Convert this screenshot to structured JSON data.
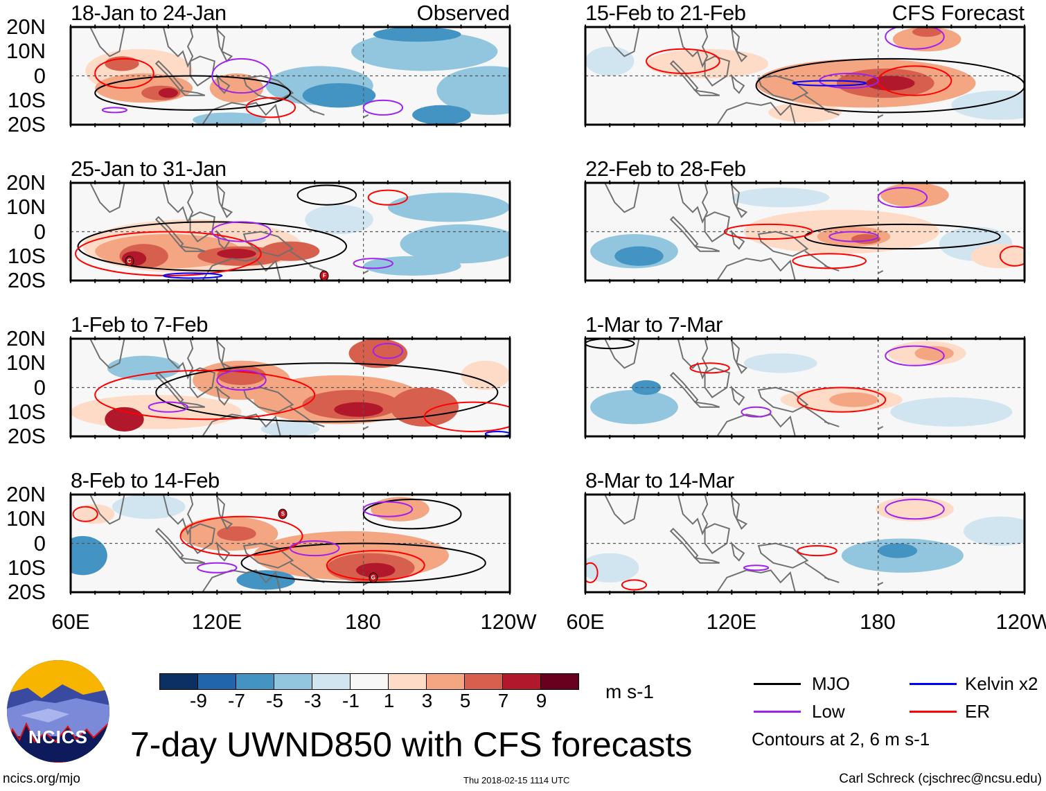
{
  "title": "7-day UWND850 with CFS forecasts",
  "footer": {
    "left": "ncics.org/mjo",
    "center": "Thu 2018-02-15 1114 UTC",
    "right": "Carl Schreck (cjschrec@ncsu.edu)"
  },
  "logo_text": "NCICS",
  "column_labels": {
    "left": "Observed",
    "right": "CFS Forecast"
  },
  "lat_labels": [
    "20N",
    "10N",
    "0",
    "10S",
    "20S"
  ],
  "lon_labels": [
    "60E",
    "120E",
    "180",
    "120W"
  ],
  "colorbar": {
    "units": "m s-1",
    "colors": [
      "#0b3162",
      "#2166ac",
      "#4393c3",
      "#92c5de",
      "#d1e5f0",
      "#f7f7f7",
      "#fddbc7",
      "#f4a582",
      "#d6604d",
      "#b2182b",
      "#67001f"
    ],
    "levels": [
      "-9",
      "-7",
      "-5",
      "-3",
      "-1",
      "1",
      "3",
      "5",
      "7",
      "9"
    ]
  },
  "legend": {
    "items": [
      {
        "label": "MJO",
        "color": "#000000"
      },
      {
        "label": "Kelvin x2",
        "color": "#0000ff"
      },
      {
        "label": "Low",
        "color": "#a020f0"
      },
      {
        "label": "ER",
        "color": "#ff0000"
      }
    ],
    "note": "Contours at 2, 6 m s-1"
  },
  "chart_data": {
    "type": "heatmap",
    "variable": "850-hPa zonal wind anomaly (m s-1)",
    "lon_range": [
      60,
      240
    ],
    "lat_range": [
      -20,
      20
    ],
    "panels": [
      {
        "title": "18-Jan to 24-Jan",
        "label": "Observed",
        "blobs": [
          [
            88,
            2,
            22,
            9,
            3
          ],
          [
            90,
            -5,
            20,
            6,
            5
          ],
          [
            97,
            -7,
            8,
            3,
            7
          ],
          [
            100,
            -7,
            4,
            2,
            9
          ],
          [
            128,
            -5,
            11,
            6,
            5
          ],
          [
            81,
            5,
            7,
            3,
            7
          ],
          [
            150,
            15,
            16,
            5,
            1
          ],
          [
            162,
            -4,
            22,
            8,
            -3
          ],
          [
            170,
            -8,
            15,
            5,
            -5
          ],
          [
            205,
            10,
            30,
            8,
            -3
          ],
          [
            202,
            17,
            18,
            3,
            -5
          ],
          [
            232,
            -6,
            22,
            10,
            -3
          ],
          [
            212,
            -16,
            12,
            4,
            -5
          ],
          [
            125,
            -18,
            15,
            3,
            -3
          ]
        ],
        "contours": [
          [
            "MJO",
            110,
            -7,
            40,
            7
          ],
          [
            "ER",
            82,
            1,
            12,
            6
          ],
          [
            "ER",
            142,
            -13,
            10,
            4
          ],
          [
            "Low",
            130,
            0,
            12,
            7
          ],
          [
            "Low",
            188,
            -13,
            8,
            3
          ],
          [
            "Low",
            78,
            -14,
            5,
            1
          ]
        ],
        "storms": []
      },
      {
        "title": "25-Jan to 31-Jan",
        "label": "",
        "blobs": [
          [
            110,
            -6,
            45,
            11,
            3
          ],
          [
            100,
            -8,
            30,
            7,
            5
          ],
          [
            90,
            -10,
            10,
            5,
            7
          ],
          [
            86,
            -11,
            5,
            3,
            9
          ],
          [
            130,
            -10,
            18,
            4,
            7
          ],
          [
            128,
            -9,
            8,
            2,
            9
          ],
          [
            150,
            -8,
            12,
            4,
            7
          ],
          [
            150,
            12,
            20,
            5,
            1
          ],
          [
            170,
            5,
            14,
            6,
            -1
          ],
          [
            215,
            10,
            25,
            6,
            -3
          ],
          [
            220,
            -5,
            25,
            8,
            -3
          ],
          [
            200,
            -14,
            20,
            4,
            -3
          ]
        ],
        "contours": [
          [
            "MJO",
            118,
            -6,
            55,
            10
          ],
          [
            "MJO",
            165,
            15,
            12,
            4
          ],
          [
            "ER",
            100,
            -9,
            38,
            9
          ],
          [
            "ER",
            190,
            14,
            8,
            3
          ],
          [
            "Low",
            130,
            0,
            12,
            4
          ],
          [
            "Low",
            184,
            -13,
            8,
            2
          ],
          [
            "Kelvin",
            110,
            -18,
            12,
            1
          ]
        ],
        "storms": [
          [
            "C",
            84,
            -12
          ],
          [
            "F",
            164,
            -18
          ]
        ]
      },
      {
        "title": "1-Feb to 7-Feb",
        "label": "",
        "blobs": [
          [
            130,
            3,
            20,
            8,
            5
          ],
          [
            130,
            5,
            10,
            4,
            7
          ],
          [
            95,
            -10,
            35,
            7,
            3
          ],
          [
            82,
            -13,
            8,
            5,
            9
          ],
          [
            170,
            -5,
            35,
            10,
            5
          ],
          [
            175,
            -7,
            20,
            6,
            7
          ],
          [
            178,
            -9,
            10,
            3,
            9
          ],
          [
            205,
            -8,
            14,
            8,
            7
          ],
          [
            186,
            14,
            12,
            6,
            7
          ],
          [
            230,
            5,
            10,
            6,
            3
          ],
          [
            90,
            8,
            15,
            5,
            -3
          ],
          [
            150,
            -17,
            12,
            3,
            -1
          ]
        ],
        "contours": [
          [
            "MJO",
            165,
            -2,
            70,
            12
          ],
          [
            "ER",
            115,
            -3,
            45,
            10
          ],
          [
            "ER",
            225,
            -12,
            20,
            6
          ],
          [
            "Low",
            130,
            3,
            10,
            4
          ],
          [
            "Low",
            190,
            15,
            6,
            3
          ],
          [
            "Low",
            100,
            -8,
            8,
            2
          ],
          [
            "Kelvin",
            235,
            -19,
            5,
            1
          ]
        ],
        "storms": []
      },
      {
        "title": "8-Feb to 14-Feb",
        "label": "",
        "blobs": [
          [
            125,
            4,
            20,
            7,
            5
          ],
          [
            128,
            4,
            8,
            3,
            7
          ],
          [
            175,
            -5,
            40,
            10,
            5
          ],
          [
            183,
            -10,
            18,
            6,
            7
          ],
          [
            185,
            -11,
            8,
            3,
            9
          ],
          [
            195,
            14,
            12,
            5,
            5
          ],
          [
            65,
            -5,
            10,
            8,
            -5
          ],
          [
            140,
            -15,
            12,
            4,
            -5
          ],
          [
            92,
            15,
            15,
            5,
            -1
          ],
          [
            220,
            -5,
            18,
            8,
            1
          ],
          [
            70,
            12,
            8,
            4,
            3
          ]
        ],
        "contours": [
          [
            "MJO",
            180,
            -8,
            50,
            8
          ],
          [
            "MJO",
            200,
            12,
            20,
            6
          ],
          [
            "ER",
            130,
            3,
            25,
            8
          ],
          [
            "ER",
            185,
            -9,
            20,
            6
          ],
          [
            "ER",
            66,
            12,
            5,
            3
          ],
          [
            "Low",
            190,
            14,
            10,
            3
          ],
          [
            "Low",
            160,
            -2,
            10,
            3
          ],
          [
            "Low",
            120,
            -10,
            8,
            2
          ]
        ],
        "storms": [
          [
            "S",
            147,
            12
          ],
          [
            "G",
            184,
            -14
          ]
        ]
      },
      {
        "title": "15-Feb to 21-Feb",
        "label": "CFS Forecast",
        "blobs": [
          [
            175,
            -3,
            45,
            10,
            5
          ],
          [
            183,
            -3,
            20,
            6,
            7
          ],
          [
            185,
            -3,
            10,
            3,
            9
          ],
          [
            200,
            15,
            14,
            5,
            5
          ],
          [
            200,
            18,
            6,
            2,
            7
          ],
          [
            110,
            5,
            25,
            6,
            3
          ],
          [
            70,
            6,
            10,
            6,
            -1
          ],
          [
            230,
            -12,
            20,
            6,
            -1
          ],
          [
            150,
            -15,
            15,
            4,
            3
          ]
        ],
        "contours": [
          [
            "MJO",
            185,
            -4,
            55,
            11
          ],
          [
            "ER",
            100,
            6,
            15,
            5
          ],
          [
            "ER",
            195,
            -2,
            15,
            6
          ],
          [
            "Low",
            195,
            16,
            12,
            5
          ],
          [
            "Low",
            168,
            -2,
            12,
            3
          ],
          [
            "Kelvin",
            160,
            -3,
            15,
            1
          ]
        ],
        "storms": []
      },
      {
        "title": "22-Feb to 28-Feb",
        "label": "",
        "blobs": [
          [
            165,
            0,
            40,
            9,
            3
          ],
          [
            170,
            -2,
            15,
            4,
            5
          ],
          [
            175,
            -3,
            6,
            2,
            7
          ],
          [
            195,
            15,
            14,
            5,
            5
          ],
          [
            80,
            -8,
            18,
            7,
            -3
          ],
          [
            82,
            -10,
            10,
            4,
            -5
          ],
          [
            140,
            14,
            20,
            4,
            -1
          ],
          [
            220,
            -5,
            15,
            7,
            -1
          ],
          [
            230,
            -10,
            12,
            5,
            3
          ]
        ],
        "contours": [
          [
            "MJO",
            190,
            -2,
            40,
            5
          ],
          [
            "ER",
            135,
            0,
            18,
            3
          ],
          [
            "ER",
            160,
            -12,
            15,
            3
          ],
          [
            "ER",
            236,
            -10,
            6,
            4
          ],
          [
            "Low",
            190,
            14,
            10,
            4
          ],
          [
            "Low",
            170,
            -2,
            10,
            2
          ]
        ],
        "storms": []
      },
      {
        "title": "1-Mar to 7-Mar",
        "label": "",
        "blobs": [
          [
            165,
            -5,
            25,
            5,
            3
          ],
          [
            170,
            -5,
            10,
            3,
            5
          ],
          [
            200,
            14,
            16,
            5,
            3
          ],
          [
            203,
            14,
            8,
            3,
            5
          ],
          [
            80,
            -8,
            18,
            7,
            -3
          ],
          [
            85,
            0,
            6,
            3,
            -5
          ],
          [
            210,
            -10,
            25,
            6,
            -1
          ],
          [
            140,
            10,
            15,
            4,
            -1
          ]
        ],
        "contours": [
          [
            "MJO",
            70,
            18,
            10,
            2
          ],
          [
            "ER",
            165,
            -5,
            18,
            5
          ],
          [
            "ER",
            111,
            8,
            8,
            2
          ],
          [
            "Low",
            195,
            13,
            12,
            4
          ],
          [
            "Low",
            130,
            -10,
            6,
            2
          ]
        ],
        "storms": []
      },
      {
        "title": "8-Mar to 14-Mar",
        "label": "",
        "blobs": [
          [
            195,
            14,
            16,
            5,
            3
          ],
          [
            190,
            -5,
            25,
            7,
            -3
          ],
          [
            188,
            -3,
            8,
            3,
            -5
          ],
          [
            70,
            -10,
            12,
            6,
            -1
          ],
          [
            150,
            -8,
            15,
            4,
            1
          ],
          [
            230,
            5,
            15,
            6,
            -1
          ]
        ],
        "contours": [
          [
            "ER",
            62,
            -12,
            3,
            4
          ],
          [
            "ER",
            80,
            -17,
            5,
            2
          ],
          [
            "ER",
            155,
            -3,
            8,
            2
          ],
          [
            "Low",
            195,
            14,
            12,
            4
          ],
          [
            "Low",
            130,
            -10,
            5,
            1
          ]
        ],
        "storms": []
      }
    ]
  }
}
